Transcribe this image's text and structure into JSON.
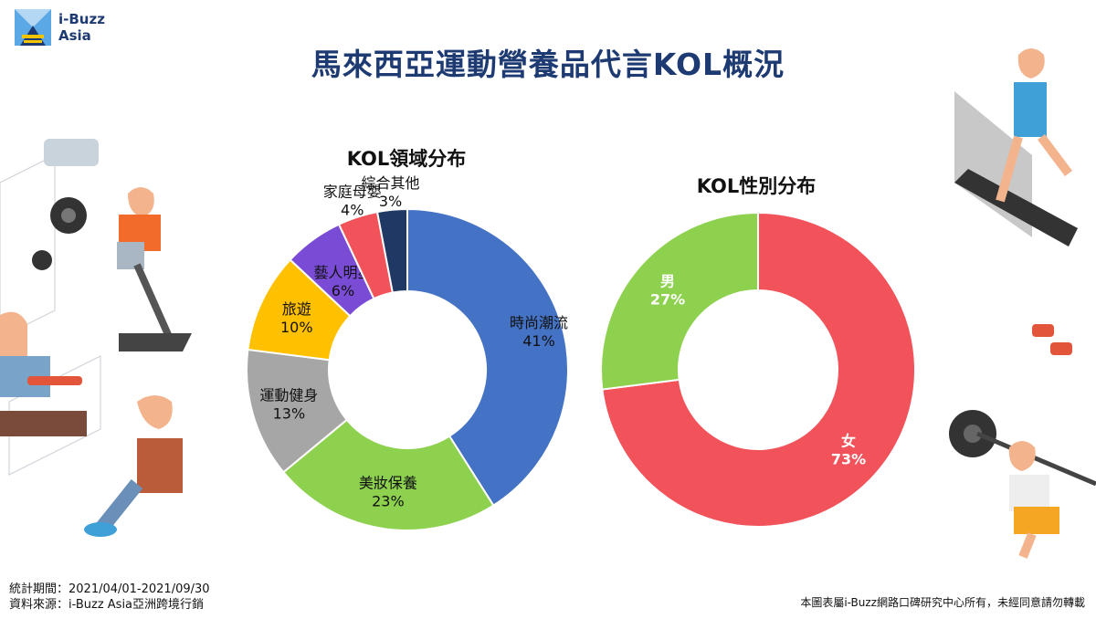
{
  "brand": {
    "name_line1": "i-Buzz",
    "name_line2": "Asia"
  },
  "title": "馬來西亞運動營養品代言KOL概況",
  "colors": {
    "title": "#1d3a72"
  },
  "chart_data": [
    {
      "type": "pie",
      "variant": "donut",
      "title": "KOL領域分布",
      "slices": [
        {
          "label": "時尚潮流",
          "value": 41,
          "value_label": "41%",
          "color": "#4472c4"
        },
        {
          "label": "美妝保養",
          "value": 23,
          "value_label": "23%",
          "color": "#8dd14f"
        },
        {
          "label": "運動健身",
          "value": 13,
          "value_label": "13%",
          "color": "#a6a6a6"
        },
        {
          "label": "旅遊",
          "value": 10,
          "value_label": "10%",
          "color": "#ffc000"
        },
        {
          "label": "藝人明星",
          "value": 6,
          "value_label": "6%",
          "color": "#7a4cd6"
        },
        {
          "label": "家庭母嬰",
          "value": 4,
          "value_label": "4%",
          "color": "#f2525a"
        },
        {
          "label": "綜合其他",
          "value": 3,
          "value_label": "3%",
          "color": "#1f3864"
        }
      ]
    },
    {
      "type": "pie",
      "variant": "donut",
      "title": "KOL性別分布",
      "slices": [
        {
          "label": "女",
          "value": 73,
          "value_label": "73%",
          "color": "#f2525a"
        },
        {
          "label": "男",
          "value": 27,
          "value_label": "27%",
          "color": "#8dd14f"
        }
      ]
    }
  ],
  "footer": {
    "period": "統計期間：2021/04/01-2021/09/30",
    "source": "資料來源：i-Buzz Asia亞洲跨境行銷",
    "copyright": "本圖表屬i-Buzz網路口碑研究中心所有，未經同意請勿轉載"
  }
}
